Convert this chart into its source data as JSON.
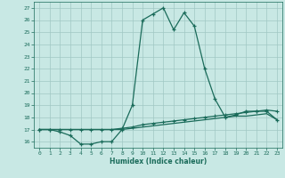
{
  "xlabel": "Humidex (Indice chaleur)",
  "xlim": [
    -0.5,
    23.5
  ],
  "ylim": [
    15.5,
    27.5
  ],
  "xticks": [
    0,
    1,
    2,
    3,
    4,
    5,
    6,
    7,
    8,
    9,
    10,
    11,
    12,
    13,
    14,
    15,
    16,
    17,
    18,
    19,
    20,
    21,
    22,
    23
  ],
  "yticks": [
    16,
    17,
    18,
    19,
    20,
    21,
    22,
    23,
    24,
    25,
    26,
    27
  ],
  "bg_color": "#c8e8e4",
  "line_color": "#1a6b5a",
  "grid_color": "#a0c8c4",
  "line1_x": [
    0,
    1,
    2,
    3,
    4,
    5,
    6,
    7,
    8,
    9,
    10,
    11,
    12,
    13,
    14,
    15,
    16,
    17,
    18,
    19,
    20,
    21,
    22,
    23
  ],
  "line1_y": [
    17.0,
    17.0,
    16.8,
    16.5,
    15.8,
    15.8,
    16.0,
    16.0,
    17.0,
    19.0,
    26.0,
    26.5,
    27.0,
    25.2,
    26.6,
    25.5,
    22.0,
    19.5,
    18.0,
    18.2,
    18.5,
    18.5,
    18.5,
    17.8
  ],
  "line2_x": [
    0,
    1,
    2,
    3,
    4,
    5,
    6,
    7,
    8,
    9,
    10,
    11,
    12,
    13,
    14,
    15,
    16,
    17,
    18,
    19,
    20,
    21,
    22,
    23
  ],
  "line2_y": [
    17.0,
    17.0,
    17.0,
    17.0,
    17.0,
    17.0,
    17.0,
    17.0,
    17.1,
    17.2,
    17.4,
    17.5,
    17.6,
    17.7,
    17.8,
    17.9,
    18.0,
    18.1,
    18.2,
    18.3,
    18.4,
    18.5,
    18.6,
    18.5
  ],
  "line3_x": [
    0,
    1,
    2,
    3,
    4,
    5,
    6,
    7,
    8,
    9,
    10,
    11,
    12,
    13,
    14,
    15,
    16,
    17,
    18,
    19,
    20,
    21,
    22,
    23
  ],
  "line3_y": [
    17.0,
    17.0,
    17.0,
    17.0,
    17.0,
    17.0,
    17.0,
    17.0,
    17.0,
    17.1,
    17.2,
    17.3,
    17.4,
    17.5,
    17.6,
    17.7,
    17.8,
    17.9,
    18.0,
    18.1,
    18.1,
    18.2,
    18.3,
    17.8
  ]
}
